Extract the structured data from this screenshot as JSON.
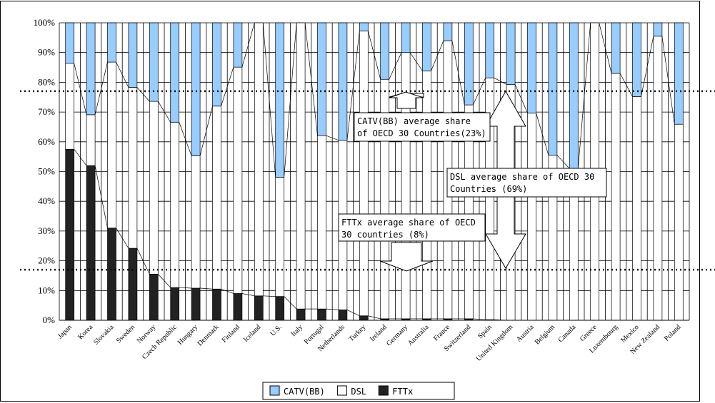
{
  "chart_data": {
    "type": "bar",
    "stacked": true,
    "categories": [
      "Japan",
      "Korea",
      "Slovakia",
      "Sweden",
      "Norway",
      "Czech Republic",
      "Hungary",
      "Denmark",
      "Finland",
      "Iceland",
      "U.S.",
      "Italy",
      "Portugal",
      "Netherlands",
      "Turkey",
      "Ireland",
      "Germany",
      "Australia",
      "France",
      "Switzerland",
      "Spain",
      "United Kingdom",
      "Austria",
      "Belgium",
      "Canada",
      "Greece",
      "Luxembourg",
      "Mexico",
      "New Zealand",
      "Poland"
    ],
    "series": [
      {
        "name": "FTTx",
        "color": "#222222",
        "values": [
          57.5,
          52,
          31,
          24.2,
          15.5,
          11,
          10.8,
          10.5,
          9,
          8.2,
          8,
          3.8,
          3.8,
          3.5,
          1.5,
          0.5,
          0.5,
          0.5,
          0.5,
          0.5,
          0.2,
          0,
          0,
          0,
          0,
          0,
          0,
          0,
          0,
          0
        ]
      },
      {
        "name": "DSL",
        "color": "#ffffff",
        "values": [
          28.9,
          17.1,
          55.8,
          54.1,
          58.1,
          55.6,
          44.5,
          61.5,
          76.1,
          91.8,
          40.1,
          96.2,
          58.3,
          57,
          95.8,
          80.5,
          89.5,
          83.3,
          93.5,
          71.9,
          81.3,
          79.3,
          69.7,
          55.5,
          51,
          100,
          83,
          75.2,
          95.5,
          65.9
        ]
      },
      {
        "name": "CATV(BB)",
        "color": "#99ccff",
        "values": [
          13.6,
          30.9,
          13.2,
          21.7,
          26.4,
          33.4,
          44.7,
          28,
          14.9,
          0,
          51.9,
          0,
          37.9,
          39.5,
          2.7,
          19,
          10,
          16.2,
          6,
          27.6,
          18.5,
          20.7,
          30.3,
          44.5,
          49,
          0,
          17,
          24.8,
          4.5,
          34.1
        ]
      }
    ],
    "y_ticks": [
      "0%",
      "10%",
      "20%",
      "30%",
      "40%",
      "50%",
      "60%",
      "70%",
      "80%",
      "90%",
      "100%"
    ],
    "ylim": [
      0,
      100
    ],
    "grid": true,
    "legend_position": "bottom",
    "annotations": [
      {
        "text_lines": [
          "CATV(BB) average share",
          "of OECD 30 Countries(23%)"
        ],
        "value": 77
      },
      {
        "text_lines": [
          "DSL average share of OECD 30",
          "Countries (69%)"
        ]
      },
      {
        "text_lines": [
          "FTTx average share of OECD",
          "30 countries (8%)"
        ],
        "value": 17
      }
    ]
  },
  "legend": [
    {
      "label": "CATV(BB)",
      "color": "#99ccff"
    },
    {
      "label": "DSL",
      "color": "#ffffff"
    },
    {
      "label": "FTTx",
      "color": "#222222"
    }
  ]
}
